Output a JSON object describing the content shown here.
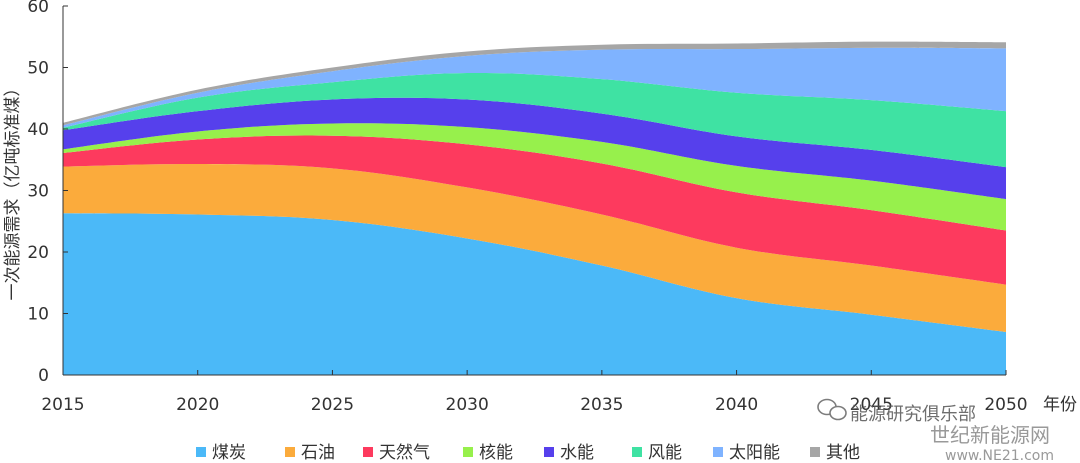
{
  "chart_data": {
    "type": "area",
    "stacked": true,
    "title": "",
    "xlabel": "年份",
    "ylabel": "一次能源需求（亿吨标准煤）",
    "x": [
      2015,
      2020,
      2025,
      2030,
      2035,
      2040,
      2045,
      2050
    ],
    "xlim": [
      2015,
      2050
    ],
    "ylim": [
      0,
      60
    ],
    "yticks": [
      0,
      10,
      20,
      30,
      40,
      50,
      60
    ],
    "grid": false,
    "legend_position": "bottom",
    "series": [
      {
        "name": "煤炭",
        "color": "#4bb9f8",
        "values": [
          26.3,
          26.1,
          25.2,
          22.2,
          17.8,
          12.5,
          9.8,
          7.0
        ]
      },
      {
        "name": "石油",
        "color": "#fbab3c",
        "values": [
          7.6,
          8.2,
          8.4,
          8.3,
          8.3,
          8.2,
          8.0,
          7.7
        ]
      },
      {
        "name": "天然气",
        "color": "#fd3a5e",
        "values": [
          2.2,
          4.0,
          5.3,
          7.0,
          8.3,
          9.0,
          9.0,
          8.8
        ]
      },
      {
        "name": "核能",
        "color": "#97f04c",
        "values": [
          0.6,
          1.3,
          2.0,
          2.8,
          3.5,
          4.3,
          4.8,
          5.1
        ]
      },
      {
        "name": "水能",
        "color": "#5640ec",
        "values": [
          3.1,
          3.3,
          3.9,
          4.5,
          4.6,
          4.8,
          5.0,
          5.2
        ]
      },
      {
        "name": "风能",
        "color": "#3fe2a3",
        "values": [
          0.4,
          2.2,
          2.8,
          4.3,
          5.6,
          7.1,
          8.1,
          9.1
        ]
      },
      {
        "name": "太阳能",
        "color": "#7fb3ff",
        "values": [
          0.4,
          0.8,
          1.8,
          2.8,
          4.8,
          7.1,
          8.5,
          10.2
        ]
      },
      {
        "name": "其他",
        "color": "#a6a6a6",
        "values": [
          0.4,
          0.5,
          0.6,
          0.7,
          0.8,
          0.9,
          1.0,
          1.0
        ]
      }
    ]
  },
  "watermark": {
    "line1": "能源研究俱乐部",
    "line2": "世纪新能源网",
    "line3": "www.NE21.com"
  }
}
